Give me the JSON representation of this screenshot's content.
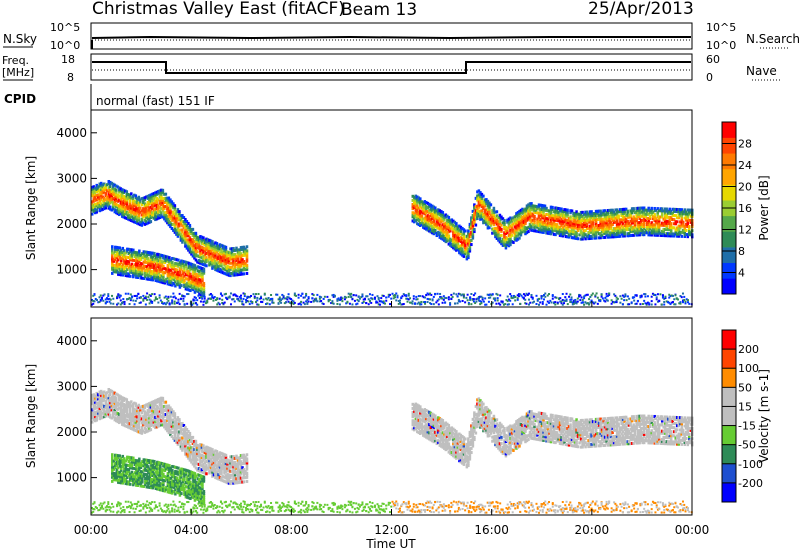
{
  "header": {
    "station": "Christmas Valley East (fitACF)",
    "beam": "Beam 13",
    "date": "25/Apr/2013"
  },
  "noise_panel": {
    "left_label": "N.Sky",
    "left_ticks": [
      "10^5",
      "10^0"
    ],
    "right_label": "N.Search",
    "right_ticks": [
      "10^5",
      "10^0"
    ]
  },
  "freq_panel": {
    "left_label": [
      "Freq.",
      "[MHz]"
    ],
    "left_ticks": [
      "18",
      "8"
    ],
    "right_label": "Nave",
    "right_ticks": [
      "60",
      "0"
    ]
  },
  "cpid": {
    "label": "CPID",
    "value": "normal (fast) 151 IF"
  },
  "x_axis": {
    "label": "Time UT",
    "ticks": [
      "00:00",
      "04:00",
      "08:00",
      "12:00",
      "16:00",
      "20:00",
      "00:00"
    ]
  },
  "chart_data": [
    {
      "type": "heatmap",
      "title": "",
      "xlabel": "Time UT",
      "ylabel": "Slant Range [km]",
      "x_range_hours": [
        0,
        24
      ],
      "ylim": [
        180,
        4500
      ],
      "y_ticks": [
        "4000",
        "3000",
        "2000",
        "1000"
      ],
      "colorbar": {
        "label": "Power [dB]",
        "ticks": [
          "28",
          "24",
          "20",
          "16",
          "12",
          "8",
          "4"
        ],
        "colors": [
          "#0000ff",
          "#0038ff",
          "#1e6ea8",
          "#2e8b57",
          "#55a84a",
          "#9acd32",
          "#e6d800",
          "#ffa500",
          "#ff7a00",
          "#ff4500",
          "#ff0000"
        ]
      },
      "echo_bands": [
        {
          "name": "early-trace",
          "points": [
            [
              0.0,
              2550
            ],
            [
              0.6,
              2700
            ],
            [
              1.2,
              2500
            ],
            [
              2.0,
              2300
            ],
            [
              2.8,
              2500
            ],
            [
              3.3,
              2150
            ],
            [
              4.2,
              1500
            ],
            [
              5.5,
              1200
            ],
            [
              6.2,
              1250
            ]
          ]
        },
        {
          "name": "near-range-patch",
          "points": [
            [
              0.8,
              1250
            ],
            [
              2.5,
              1100
            ],
            [
              3.8,
              900
            ],
            [
              4.5,
              750
            ]
          ]
        },
        {
          "name": "late-trace",
          "points": [
            [
              12.8,
              2400
            ],
            [
              14.0,
              2000
            ],
            [
              15.0,
              1550
            ],
            [
              15.4,
              2500
            ],
            [
              16.5,
              1800
            ],
            [
              17.5,
              2200
            ],
            [
              19.5,
              2000
            ],
            [
              22.0,
              2100
            ],
            [
              24.0,
              2050
            ]
          ]
        }
      ]
    },
    {
      "type": "heatmap",
      "title": "",
      "xlabel": "Time UT",
      "ylabel": "Slant Range [km]",
      "x_range_hours": [
        0,
        24
      ],
      "ylim": [
        180,
        4500
      ],
      "y_ticks": [
        "4000",
        "3000",
        "2000",
        "1000"
      ],
      "colorbar": {
        "label": "Velocity [m s-1]",
        "ticks": [
          "200",
          "100",
          "50",
          "15",
          "-15",
          "-50",
          "-100",
          "-200"
        ],
        "colors": [
          "#0000ff",
          "#1e4fcf",
          "#2e8b57",
          "#66cc33",
          "#bfbfbf",
          "#bfbfbf",
          "#ff8c00",
          "#ff4500",
          "#ff0000"
        ]
      }
    }
  ]
}
